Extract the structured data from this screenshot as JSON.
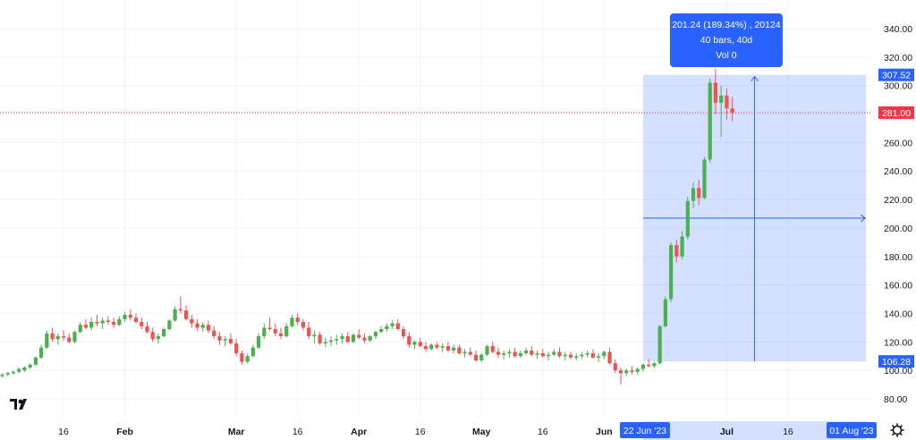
{
  "chart_data": {
    "type": "candlestick",
    "grid": true,
    "ylim": [
      72,
      352
    ],
    "price_axis_ticks": [
      80,
      100,
      120,
      140,
      160,
      180,
      200,
      220,
      240,
      260,
      280,
      300,
      320,
      340
    ],
    "price_axis_tick_labels": [
      "80.00",
      "100.00",
      "120.00",
      "140.00",
      "160.00",
      "180.00",
      "200.00",
      "220.00",
      "240.00",
      "260.00",
      "280.00",
      "300.00",
      "320.00",
      "340.00"
    ],
    "time_axis_labels": [
      {
        "text": "16",
        "index": 11,
        "bold": false
      },
      {
        "text": "Feb",
        "index": 22,
        "bold": true
      },
      {
        "text": "Mar",
        "index": 42,
        "bold": true
      },
      {
        "text": "16",
        "index": 53,
        "bold": false
      },
      {
        "text": "Apr",
        "index": 64,
        "bold": true
      },
      {
        "text": "16",
        "index": 75,
        "bold": false
      },
      {
        "text": "May",
        "index": 86,
        "bold": true
      },
      {
        "text": "16",
        "index": 97,
        "bold": false
      },
      {
        "text": "Jun",
        "index": 108,
        "bold": true
      },
      {
        "text": "Jul",
        "index": 130,
        "bold": true
      },
      {
        "text": "16",
        "index": 141,
        "bold": false
      }
    ],
    "last_price": 281.0,
    "last_price_label": "281.00",
    "candles": [
      [
        96,
        98,
        95,
        97
      ],
      [
        97,
        99,
        96,
        98
      ],
      [
        98,
        100,
        97,
        99
      ],
      [
        99,
        102,
        98,
        101
      ],
      [
        100,
        103,
        99,
        102
      ],
      [
        102,
        105,
        101,
        104
      ],
      [
        104,
        110,
        103,
        109
      ],
      [
        109,
        118,
        108,
        116
      ],
      [
        116,
        128,
        115,
        126
      ],
      [
        126,
        130,
        120,
        122
      ],
      [
        122,
        126,
        118,
        124
      ],
      [
        124,
        128,
        121,
        123
      ],
      [
        123,
        126,
        119,
        120
      ],
      [
        120,
        128,
        119,
        127
      ],
      [
        127,
        134,
        126,
        132
      ],
      [
        132,
        136,
        129,
        130
      ],
      [
        130,
        137,
        128,
        134
      ],
      [
        134,
        139,
        131,
        133
      ],
      [
        133,
        137,
        129,
        135
      ],
      [
        135,
        138,
        132,
        134
      ],
      [
        134,
        137,
        130,
        132
      ],
      [
        132,
        138,
        131,
        136
      ],
      [
        136,
        141,
        134,
        139
      ],
      [
        139,
        143,
        135,
        137
      ],
      [
        137,
        140,
        133,
        134
      ],
      [
        134,
        137,
        129,
        131
      ],
      [
        131,
        134,
        126,
        127
      ],
      [
        127,
        130,
        120,
        122
      ],
      [
        122,
        126,
        119,
        124
      ],
      [
        124,
        130,
        123,
        129
      ],
      [
        129,
        136,
        128,
        135
      ],
      [
        135,
        145,
        134,
        143
      ],
      [
        143,
        152,
        140,
        142
      ],
      [
        142,
        146,
        135,
        136
      ],
      [
        136,
        139,
        130,
        133
      ],
      [
        133,
        136,
        128,
        130
      ],
      [
        130,
        134,
        127,
        132
      ],
      [
        132,
        135,
        126,
        128
      ],
      [
        128,
        131,
        122,
        124
      ],
      [
        124,
        127,
        118,
        121
      ],
      [
        121,
        124,
        117,
        122
      ],
      [
        122,
        126,
        118,
        119
      ],
      [
        119,
        122,
        110,
        112
      ],
      [
        112,
        114,
        104,
        106
      ],
      [
        106,
        112,
        105,
        110
      ],
      [
        110,
        118,
        109,
        116
      ],
      [
        116,
        126,
        115,
        124
      ],
      [
        124,
        133,
        122,
        130
      ],
      [
        130,
        137,
        128,
        129
      ],
      [
        129,
        133,
        124,
        126
      ],
      [
        126,
        130,
        122,
        124
      ],
      [
        124,
        133,
        123,
        131
      ],
      [
        131,
        139,
        130,
        137
      ],
      [
        137,
        140,
        132,
        134
      ],
      [
        134,
        136,
        128,
        130
      ],
      [
        130,
        134,
        122,
        124
      ],
      [
        124,
        128,
        119,
        125
      ],
      [
        125,
        127,
        118,
        119
      ],
      [
        119,
        123,
        116,
        120
      ],
      [
        120,
        124,
        117,
        121
      ],
      [
        121,
        125,
        118,
        122
      ],
      [
        122,
        126,
        119,
        124
      ],
      [
        124,
        127,
        119,
        120
      ],
      [
        120,
        126,
        119,
        125
      ],
      [
        125,
        129,
        122,
        123
      ],
      [
        123,
        126,
        119,
        121
      ],
      [
        121,
        125,
        120,
        124
      ],
      [
        124,
        128,
        122,
        127
      ],
      [
        127,
        131,
        126,
        129
      ],
      [
        129,
        133,
        127,
        131
      ],
      [
        131,
        135,
        129,
        133
      ],
      [
        133,
        136,
        128,
        129
      ],
      [
        129,
        131,
        122,
        124
      ],
      [
        124,
        127,
        116,
        118
      ],
      [
        118,
        121,
        115,
        120
      ],
      [
        120,
        123,
        116,
        117
      ],
      [
        117,
        120,
        113,
        115
      ],
      [
        115,
        119,
        114,
        118
      ],
      [
        118,
        120,
        115,
        116
      ],
      [
        116,
        119,
        113,
        117
      ],
      [
        117,
        120,
        113,
        114
      ],
      [
        114,
        118,
        112,
        116
      ],
      [
        116,
        118,
        111,
        112
      ],
      [
        112,
        115,
        109,
        113
      ],
      [
        113,
        116,
        110,
        111
      ],
      [
        111,
        114,
        106,
        107
      ],
      [
        107,
        112,
        106,
        111
      ],
      [
        111,
        118,
        110,
        117
      ],
      [
        117,
        120,
        112,
        113
      ],
      [
        113,
        116,
        109,
        111
      ],
      [
        111,
        114,
        108,
        112
      ],
      [
        112,
        115,
        109,
        113
      ],
      [
        113,
        116,
        109,
        110
      ],
      [
        110,
        114,
        109,
        112
      ],
      [
        112,
        116,
        111,
        114
      ],
      [
        114,
        117,
        110,
        111
      ],
      [
        111,
        114,
        108,
        112
      ],
      [
        112,
        115,
        109,
        110
      ],
      [
        110,
        113,
        107,
        111
      ],
      [
        111,
        115,
        110,
        113
      ],
      [
        113,
        116,
        109,
        110
      ],
      [
        110,
        113,
        107,
        111
      ],
      [
        111,
        113,
        108,
        109
      ],
      [
        109,
        112,
        107,
        110
      ],
      [
        110,
        113,
        108,
        111
      ],
      [
        111,
        114,
        109,
        112
      ],
      [
        112,
        115,
        108,
        109
      ],
      [
        109,
        112,
        106,
        110
      ],
      [
        110,
        114,
        108,
        113
      ],
      [
        113,
        116,
        104,
        105
      ],
      [
        105,
        108,
        98,
        100
      ],
      [
        100,
        102,
        90,
        98
      ],
      [
        98,
        101,
        96,
        100
      ],
      [
        100,
        103,
        97,
        99
      ],
      [
        99,
        102,
        97,
        101
      ],
      [
        101,
        105,
        99,
        104
      ],
      [
        104,
        108,
        102,
        103
      ],
      [
        103,
        106,
        102,
        105
      ],
      [
        105,
        132,
        104,
        131
      ],
      [
        131,
        152,
        130,
        150
      ],
      [
        150,
        190,
        148,
        188
      ],
      [
        188,
        192,
        176,
        180
      ],
      [
        180,
        198,
        178,
        194
      ],
      [
        194,
        222,
        192,
        219
      ],
      [
        219,
        232,
        214,
        228
      ],
      [
        228,
        234,
        216,
        221
      ],
      [
        221,
        250,
        220,
        248
      ],
      [
        248,
        305,
        246,
        302
      ],
      [
        302,
        312,
        280,
        288
      ],
      [
        288,
        300,
        264,
        293
      ],
      [
        293,
        298,
        276,
        284
      ],
      [
        284,
        292,
        275,
        281
      ]
    ]
  },
  "measure": {
    "line1": "201.24 (189.34%) , 20124",
    "line2": "40 bars, 40d",
    "line3": "Vol 0",
    "start_index": 115,
    "end_index": 155,
    "low": 106.28,
    "high": 307.52,
    "low_label": "106.28",
    "high_label": "307.52",
    "start_date_label": "22 Jun '23",
    "end_date_label": "01 Aug '23"
  },
  "colors": {
    "up": "#4caf50",
    "down": "#ef5350",
    "grid": "#f0f3fa",
    "measure_fill": "rgba(41,98,255,0.20)",
    "measure_line": "#2962ff",
    "tooltip": "#2962ff",
    "last_price": "#f23645",
    "axis_text": "#131722"
  },
  "toolbar": {
    "logo_icon": "tradingview-logo-icon",
    "settings_icon": "gear-icon"
  }
}
